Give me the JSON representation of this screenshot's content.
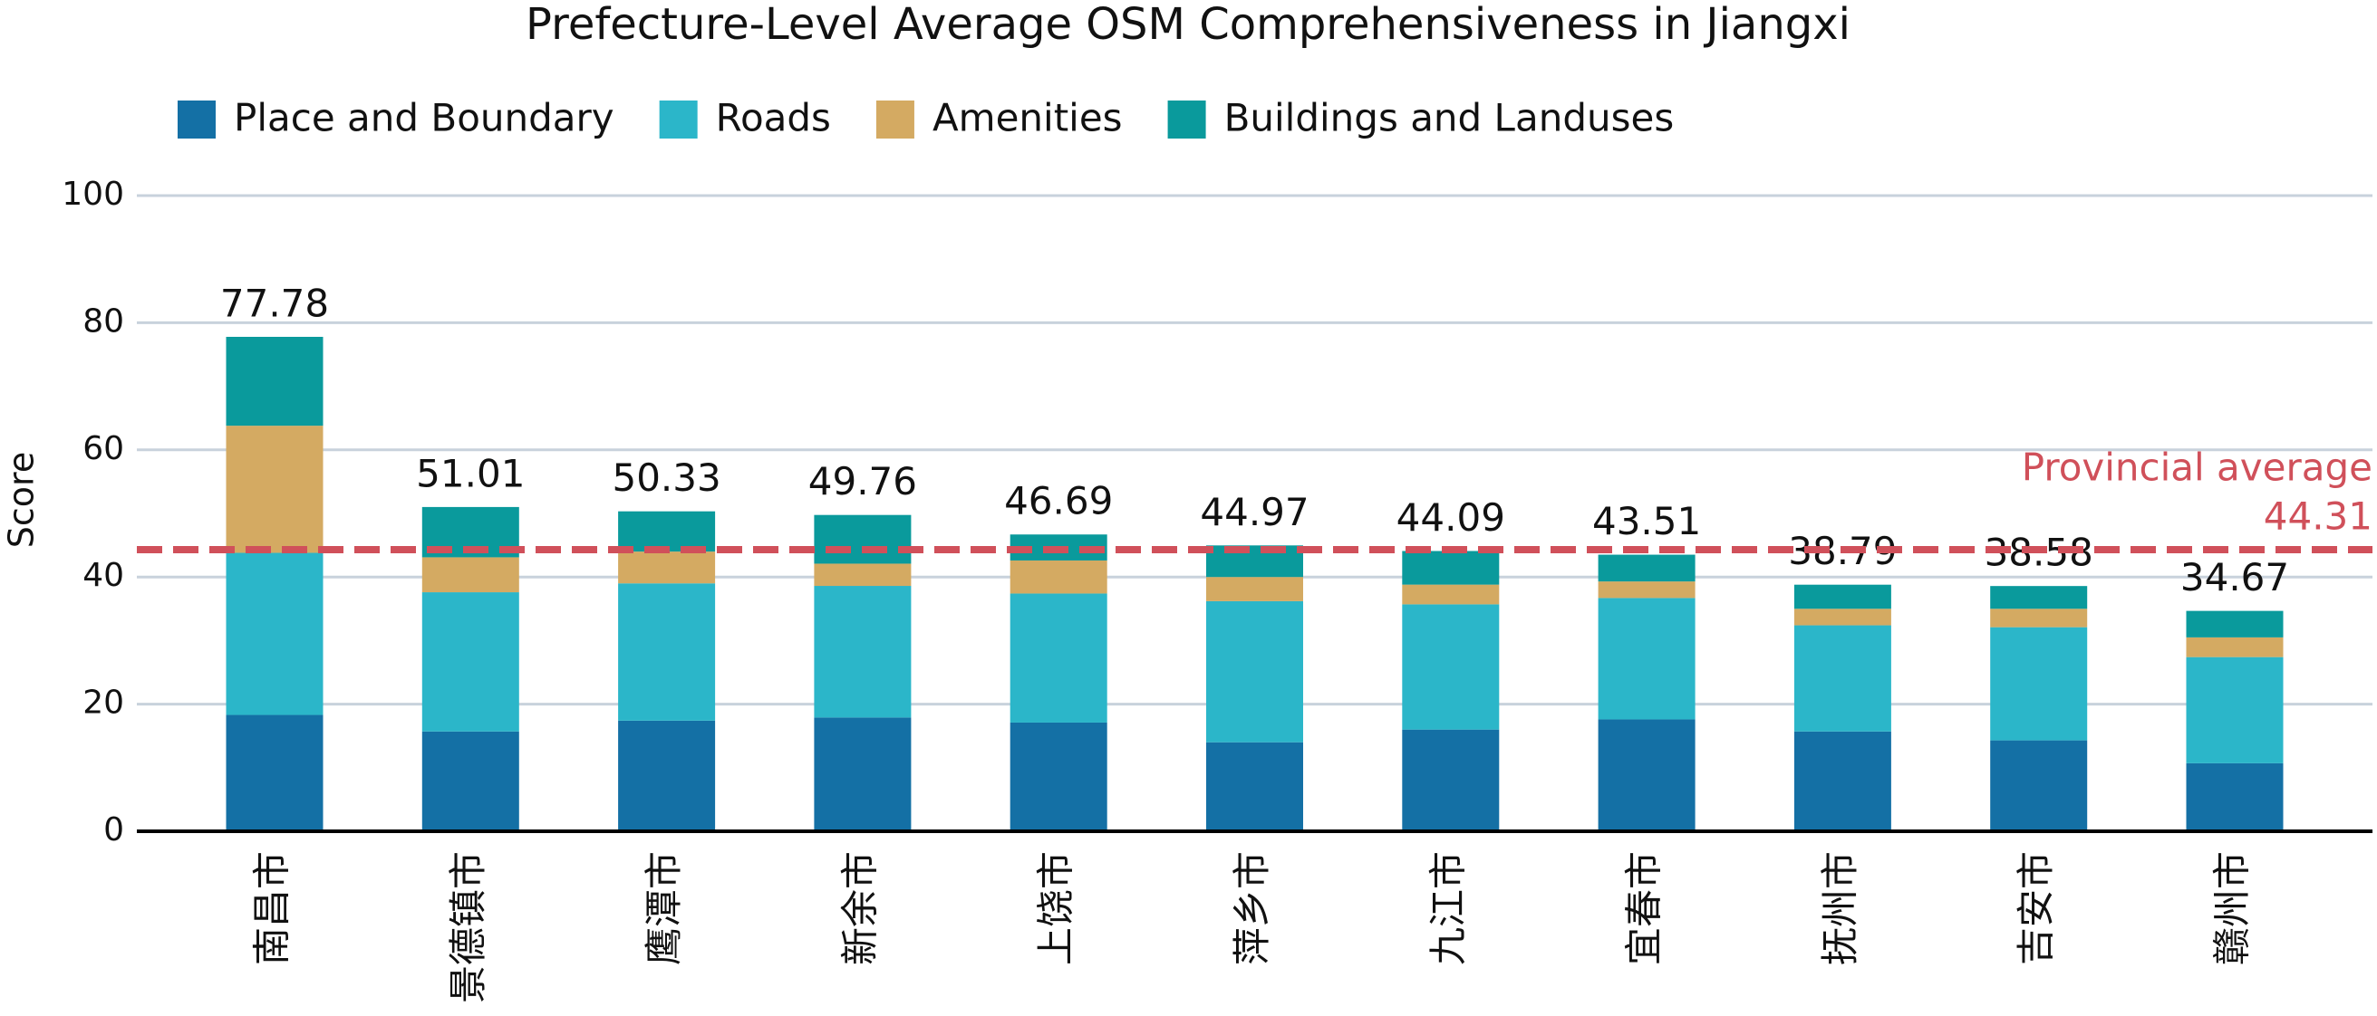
{
  "chart_data": {
    "type": "stacked_bar",
    "title": "Prefecture-Level Average OSM Comprehensiveness in Jiangxi",
    "y_label": "Score",
    "categories": [
      "南昌市",
      "景德镇市",
      "鹰潭市",
      "新余市",
      "上饶市",
      "萍乡市",
      "九江市",
      "宜春市",
      "抚州市",
      "吉安市",
      "赣州市"
    ],
    "series": [
      {
        "name": "Place and Boundary",
        "color": "#1470a5",
        "values": [
          18.3,
          15.7,
          17.4,
          17.9,
          17.1,
          14.0,
          16.0,
          17.6,
          15.7,
          14.3,
          10.7
        ]
      },
      {
        "name": "Roads",
        "color": "#2bb6c9",
        "values": [
          25.5,
          21.9,
          21.6,
          20.7,
          20.3,
          22.2,
          19.7,
          19.1,
          16.7,
          17.8,
          16.7
        ]
      },
      {
        "name": "Amenities",
        "color": "#d4aa62",
        "values": [
          20.0,
          5.5,
          5.0,
          3.5,
          5.2,
          3.8,
          3.1,
          2.6,
          2.6,
          2.9,
          3.1
        ]
      },
      {
        "name": "Buildings and Landuses",
        "color": "#0a9a9c",
        "values": [
          13.98,
          7.91,
          6.33,
          7.66,
          4.09,
          4.97,
          5.29,
          4.21,
          3.79,
          3.58,
          4.17
        ]
      }
    ],
    "totals": [
      77.78,
      51.01,
      50.33,
      49.76,
      46.69,
      44.97,
      44.09,
      43.51,
      38.79,
      38.58,
      34.67
    ],
    "reference_line": {
      "value": 44.31,
      "label": "Provincial average",
      "color": "#d0505a"
    },
    "ylim": [
      0,
      100
    ],
    "yticks": [
      0,
      20,
      40,
      60,
      80,
      100
    ],
    "grid": true,
    "legend": "top-left"
  }
}
